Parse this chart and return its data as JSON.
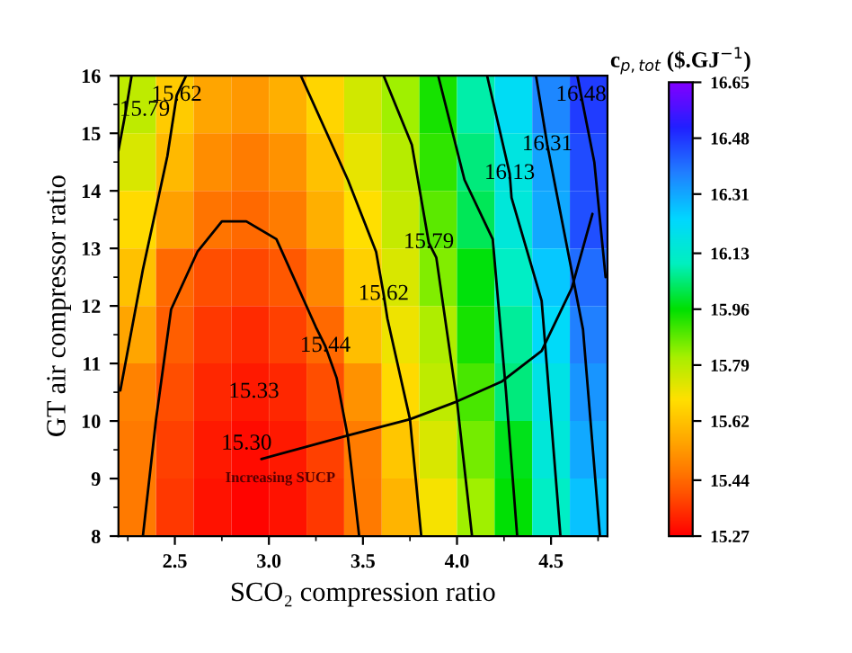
{
  "chart_data": {
    "type": "heatmap",
    "xlabel": "SCO₂ compression ratio",
    "ylabel": "GT air compressor ratio",
    "clabel": "c$_{p,tot}$ ($.GJ$^{−1}$)",
    "xlim": [
      2.2,
      4.8
    ],
    "ylim": [
      8,
      16
    ],
    "xticks": [
      2.5,
      {
        "value": 3,
        "label": "3.0"
      },
      3.5,
      {
        "value": 4,
        "label": "4.0"
      },
      4.5
    ],
    "yticks": [
      8,
      9,
      10,
      11,
      12,
      13,
      14,
      15,
      16
    ],
    "clim": [
      15.27,
      16.65
    ],
    "cticks": [
      15.27,
      15.44,
      15.62,
      15.79,
      15.96,
      16.13,
      16.31,
      16.48,
      16.65
    ],
    "cells": [
      [
        15.78,
        15.64,
        15.56,
        15.53,
        15.58,
        15.66,
        15.75,
        15.82,
        15.94,
        16.08,
        16.21,
        16.36,
        16.47
      ],
      [
        15.74,
        15.6,
        15.51,
        15.48,
        15.52,
        15.62,
        15.72,
        15.79,
        15.92,
        16.05,
        16.17,
        16.32,
        16.45
      ],
      [
        15.67,
        15.55,
        15.46,
        15.44,
        15.48,
        15.58,
        15.68,
        15.77,
        15.88,
        16.02,
        16.15,
        16.31,
        16.44
      ],
      [
        15.62,
        15.44,
        15.39,
        15.38,
        15.41,
        15.5,
        15.65,
        15.74,
        15.85,
        15.97,
        16.11,
        16.26,
        16.4
      ],
      [
        15.56,
        15.42,
        15.36,
        15.34,
        15.37,
        15.44,
        15.61,
        15.71,
        15.8,
        15.94,
        16.07,
        16.22,
        16.37
      ],
      [
        15.49,
        15.39,
        15.33,
        15.31,
        15.33,
        15.39,
        15.52,
        15.67,
        15.78,
        15.9,
        16.05,
        16.18,
        16.34
      ],
      [
        15.47,
        15.37,
        15.31,
        15.29,
        15.31,
        15.37,
        15.48,
        15.63,
        15.74,
        15.86,
        15.98,
        16.15,
        16.31
      ],
      [
        15.47,
        15.36,
        15.3,
        15.28,
        15.3,
        15.36,
        15.47,
        15.59,
        15.7,
        15.82,
        15.96,
        16.11,
        16.27
      ]
    ],
    "series": [
      {
        "type": "line",
        "name": "15.44",
        "color": "#000000",
        "x": [
          2.33,
          2.4,
          2.48,
          2.62,
          2.75,
          2.88,
          3.04,
          3.25,
          3.3,
          3.36,
          3.42,
          3.48
        ],
        "values": [
          8.0,
          10.03,
          11.94,
          12.94,
          13.47,
          13.47,
          13.16,
          11.63,
          11.3,
          10.75,
          9.72,
          8.0
        ]
      },
      {
        "type": "line",
        "name": "15.62",
        "color": "#000000",
        "x": [
          2.21,
          2.33,
          2.46,
          2.51,
          2.56
        ],
        "values": [
          10.53,
          12.63,
          14.6,
          15.66,
          16.0
        ]
      },
      {
        "type": "line",
        "name": "15.79",
        "color": "#000000",
        "x": [
          2.2,
          2.24,
          2.27
        ],
        "values": [
          14.7,
          15.4,
          16.0
        ]
      },
      {
        "type": "line",
        "name": "15.62",
        "color": "#000000",
        "x": [
          3.17,
          3.42,
          3.57,
          3.61,
          3.63,
          3.75,
          3.81
        ],
        "values": [
          16.0,
          14.19,
          12.94,
          12.2,
          11.78,
          10.03,
          8.0
        ]
      },
      {
        "type": "line",
        "name": "15.79",
        "color": "#000000",
        "x": [
          3.61,
          3.76,
          3.85,
          3.89,
          4.0,
          4.08
        ],
        "values": [
          16.0,
          14.8,
          13.1,
          12.84,
          10.34,
          8.0
        ]
      },
      {
        "type": "line",
        "color": "#000000",
        "x": [
          3.9,
          4.04,
          4.19,
          4.26,
          4.32
        ],
        "values": [
          16.0,
          14.19,
          13.16,
          10.53,
          8.0
        ]
      },
      {
        "type": "line",
        "name": "16.13",
        "color": "#000000",
        "x": [
          4.16,
          4.28,
          4.29,
          4.45,
          4.55
        ],
        "values": [
          16.0,
          14.3,
          13.88,
          12.09,
          8.0
        ]
      },
      {
        "type": "line",
        "name": "16.31",
        "color": "#000000",
        "x": [
          4.42,
          4.48,
          4.67,
          4.76
        ],
        "values": [
          16.0,
          14.8,
          11.59,
          8.0
        ]
      },
      {
        "type": "line",
        "name": "16.48",
        "color": "#000000",
        "x": [
          4.64,
          4.66,
          4.73,
          4.79
        ],
        "values": [
          16.0,
          15.66,
          14.5,
          12.5
        ]
      },
      {
        "type": "line",
        "color": "#000000",
        "x": [
          2.96,
          3.42,
          3.75,
          4.0,
          4.24,
          4.45,
          4.61,
          4.72
        ],
        "values": [
          9.34,
          9.75,
          10.03,
          10.34,
          10.69,
          11.22,
          12.31,
          13.6
        ]
      }
    ],
    "annotations": [
      "Increasing SUCP",
      "15.33",
      "15.30"
    ],
    "grid": false,
    "legend": false
  }
}
